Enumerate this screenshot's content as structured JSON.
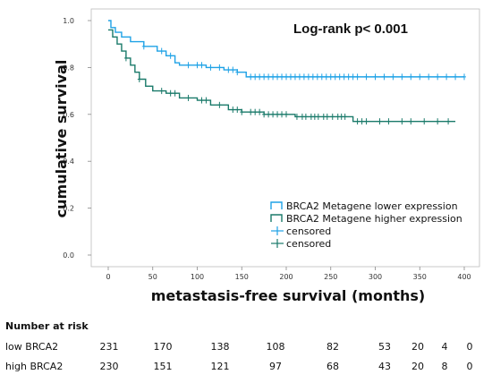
{
  "chart_data": {
    "type": "line",
    "ylabel": "cumulative survival",
    "xlabel": "metastasis-free survival (months)",
    "annotation": "Log-rank p< 0.001",
    "xlim": [
      -10,
      405
    ],
    "ylim": [
      0,
      1.0
    ],
    "x_ticks": [
      0,
      50,
      100,
      150,
      200,
      250,
      300,
      350,
      400
    ],
    "y_ticks": [
      0.0,
      0.2,
      0.4,
      0.6,
      0.8,
      1.0
    ],
    "y_tick_labels": [
      "0.0",
      "0.2",
      "0.4",
      "0.6",
      "0.8",
      "1.0"
    ],
    "grid": false,
    "legend_position": "lower-right",
    "legend": [
      "BRCA2 Metagene lower expression",
      "BRCA2 Metagene higher expression",
      "censored",
      "censored"
    ],
    "series": [
      {
        "name": "BRCA2 Metagene lower expression",
        "color": "#1fa2e6",
        "points": [
          [
            0,
            1.0
          ],
          [
            3,
            0.97
          ],
          [
            8,
            0.95
          ],
          [
            15,
            0.93
          ],
          [
            25,
            0.91
          ],
          [
            40,
            0.89
          ],
          [
            55,
            0.87
          ],
          [
            65,
            0.85
          ],
          [
            75,
            0.82
          ],
          [
            80,
            0.81
          ],
          [
            95,
            0.81
          ],
          [
            110,
            0.8
          ],
          [
            130,
            0.79
          ],
          [
            145,
            0.78
          ],
          [
            155,
            0.76
          ],
          [
            200,
            0.76
          ],
          [
            300,
            0.76
          ],
          [
            400,
            0.76
          ]
        ],
        "censored_x": [
          40,
          60,
          70,
          90,
          100,
          105,
          115,
          125,
          135,
          140,
          145,
          160,
          165,
          170,
          175,
          180,
          185,
          190,
          195,
          200,
          205,
          210,
          215,
          220,
          225,
          230,
          235,
          240,
          245,
          250,
          255,
          260,
          265,
          270,
          275,
          280,
          290,
          300,
          310,
          320,
          330,
          340,
          350,
          360,
          370,
          380,
          390,
          400
        ]
      },
      {
        "name": "BRCA2 Metagene higher expression",
        "color": "#1a7a6a",
        "points": [
          [
            0,
            0.96
          ],
          [
            5,
            0.93
          ],
          [
            10,
            0.9
          ],
          [
            15,
            0.87
          ],
          [
            20,
            0.84
          ],
          [
            25,
            0.81
          ],
          [
            30,
            0.78
          ],
          [
            35,
            0.75
          ],
          [
            42,
            0.72
          ],
          [
            50,
            0.7
          ],
          [
            65,
            0.69
          ],
          [
            80,
            0.67
          ],
          [
            100,
            0.66
          ],
          [
            115,
            0.64
          ],
          [
            135,
            0.62
          ],
          [
            150,
            0.61
          ],
          [
            175,
            0.6
          ],
          [
            200,
            0.6
          ],
          [
            210,
            0.59
          ],
          [
            270,
            0.59
          ],
          [
            275,
            0.57
          ],
          [
            390,
            0.57
          ]
        ],
        "censored_x": [
          20,
          35,
          60,
          70,
          75,
          90,
          105,
          110,
          125,
          140,
          145,
          150,
          160,
          165,
          170,
          175,
          180,
          185,
          190,
          195,
          200,
          212,
          218,
          222,
          228,
          232,
          236,
          242,
          246,
          252,
          258,
          262,
          266,
          280,
          285,
          290,
          305,
          315,
          330,
          340,
          355,
          370,
          382
        ]
      }
    ],
    "risk_table": {
      "title": "Number at risk",
      "times": [
        0,
        50,
        100,
        150,
        200,
        250,
        300,
        350,
        400
      ],
      "rows": [
        {
          "label": "low BRCA2",
          "values": [
            231,
            170,
            138,
            108,
            82,
            53,
            20,
            4,
            0
          ]
        },
        {
          "label": "high BRCA2",
          "values": [
            230,
            151,
            121,
            97,
            68,
            43,
            20,
            8,
            0
          ]
        }
      ]
    }
  }
}
